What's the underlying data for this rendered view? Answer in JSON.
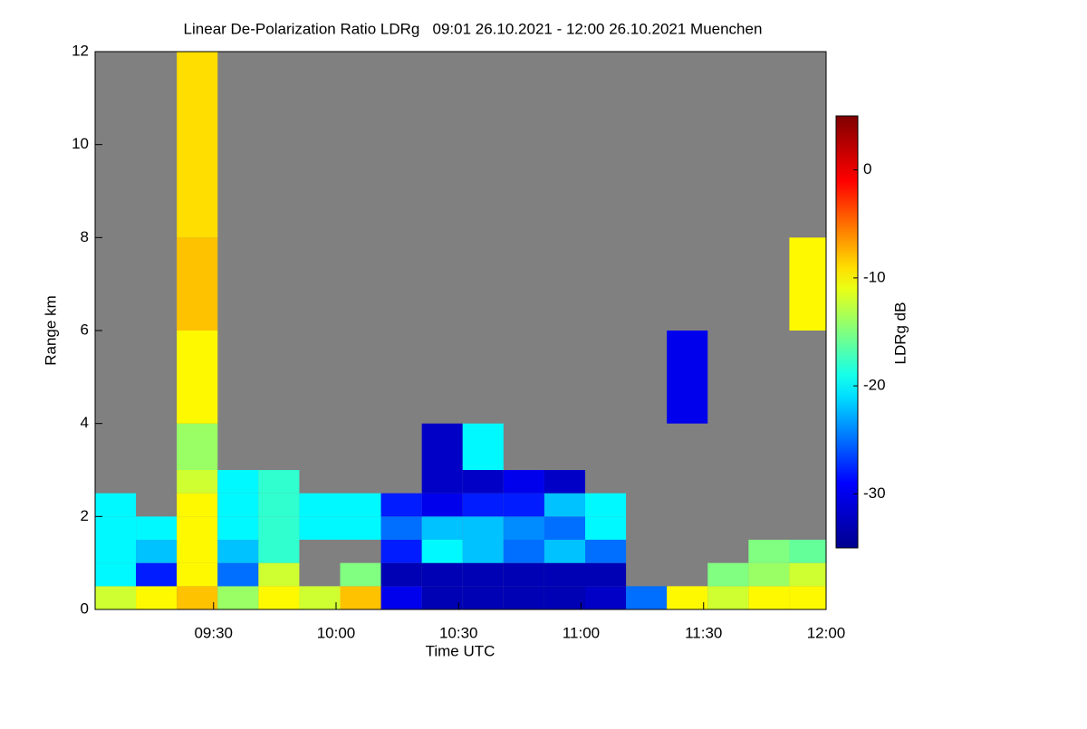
{
  "chart_data": {
    "type": "heatmap",
    "title": "Linear De-Polarization Ratio LDRg   09:01 26.10.2021 - 12:00 26.10.2021 Muenchen",
    "x_label": "Time UTC",
    "y_label": "Range km",
    "colorbar_label": "LDRg dB",
    "background": "#808080",
    "x": [
      "09:01",
      "09:11",
      "09:21",
      "09:31",
      "09:41",
      "09:51",
      "10:01",
      "10:11",
      "10:21",
      "10:31",
      "10:41",
      "10:51",
      "11:01",
      "11:11",
      "11:21",
      "11:31",
      "11:41",
      "11:51"
    ],
    "xlim": [
      "09:01",
      "12:00"
    ],
    "xticks": [
      "09:30",
      "10:00",
      "10:30",
      "11:00",
      "11:30",
      "12:00"
    ],
    "y": [
      0,
      0.5,
      1,
      1.5,
      2,
      2.5,
      3,
      4,
      6,
      8
    ],
    "ylim": [
      0,
      12
    ],
    "yticks": [
      0,
      2,
      4,
      6,
      8,
      10,
      12
    ],
    "zlim": [
      -35,
      5
    ],
    "zticks": [
      0,
      -10,
      -20,
      -30
    ],
    "z": [
      [
        -12,
        -10,
        -8,
        -14,
        -10,
        -12,
        -8,
        -30,
        -33,
        -33,
        -33,
        -33,
        -32,
        -25,
        -10,
        -12,
        -10,
        -10
      ],
      [
        -20,
        -28,
        -10,
        -25,
        -12,
        null,
        -15,
        -33,
        -33,
        -33,
        -33,
        -33,
        -33,
        null,
        null,
        -15,
        -14,
        -12
      ],
      [
        -20,
        -22,
        -10,
        -22,
        -18,
        null,
        null,
        -28,
        -20,
        -22,
        -25,
        -22,
        -25,
        null,
        null,
        null,
        -15,
        -16
      ],
      [
        -20,
        -20,
        -10,
        -20,
        -18,
        -20,
        -20,
        -25,
        -22,
        -22,
        -24,
        -25,
        -20,
        null,
        null,
        null,
        null,
        null
      ],
      [
        -20,
        null,
        -10,
        -20,
        -18,
        -20,
        -20,
        -28,
        -30,
        -28,
        -28,
        -22,
        -20,
        null,
        null,
        null,
        null,
        null
      ],
      [
        null,
        null,
        -12,
        -20,
        -18,
        null,
        null,
        null,
        -32,
        -32,
        -30,
        -32,
        null,
        null,
        null,
        null,
        null,
        null
      ],
      [
        null,
        null,
        -14,
        null,
        null,
        null,
        null,
        null,
        -32,
        -20,
        null,
        null,
        null,
        null,
        null,
        null,
        null,
        null
      ],
      [
        null,
        null,
        -10,
        null,
        null,
        null,
        null,
        null,
        null,
        null,
        null,
        null,
        null,
        null,
        -30,
        null,
        null,
        null
      ],
      [
        null,
        null,
        -8,
        null,
        null,
        null,
        null,
        null,
        null,
        null,
        null,
        null,
        null,
        null,
        null,
        null,
        null,
        -10
      ],
      [
        null,
        null,
        -9,
        null,
        null,
        null,
        null,
        null,
        null,
        null,
        null,
        null,
        null,
        null,
        null,
        null,
        null,
        null
      ]
    ]
  }
}
